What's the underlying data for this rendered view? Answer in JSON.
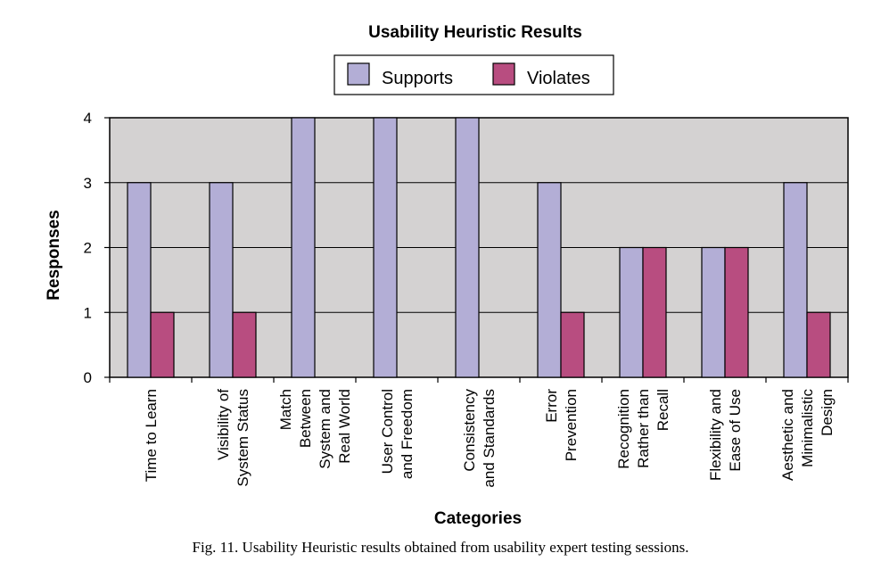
{
  "chart_data": {
    "type": "bar",
    "title": "Usability Heuristic Results",
    "xlabel": "Categories",
    "ylabel": "Responses",
    "ylim": [
      0,
      4
    ],
    "yticks": [
      "0",
      "1",
      "2",
      "3",
      "4"
    ],
    "grid": true,
    "legend_position": "top-center",
    "categories": [
      [
        "Time to Learn"
      ],
      [
        "Visibility of",
        "System Status"
      ],
      [
        "Match",
        "Between",
        "System and",
        "Real World"
      ],
      [
        "User Control",
        "and Freedom"
      ],
      [
        "Consistency",
        "and Standards"
      ],
      [
        "Error",
        "Prevention"
      ],
      [
        "Recognition",
        "Rather than",
        "Recall"
      ],
      [
        "Flexibility and",
        "Ease of Use"
      ],
      [
        "Aesthetic and",
        "Minimalistic",
        "Design"
      ]
    ],
    "series": [
      {
        "name": "Supports",
        "color": "#b3aed6",
        "values": [
          3,
          3,
          4,
          4,
          4,
          3,
          2,
          2,
          3
        ]
      },
      {
        "name": "Violates",
        "color": "#b84d80",
        "values": [
          1,
          1,
          0,
          0,
          0,
          1,
          2,
          2,
          1
        ]
      }
    ],
    "plot_background": "#d4d2d2"
  },
  "caption": "Fig. 11.  Usability Heuristic results obtained from usability expert testing sessions."
}
